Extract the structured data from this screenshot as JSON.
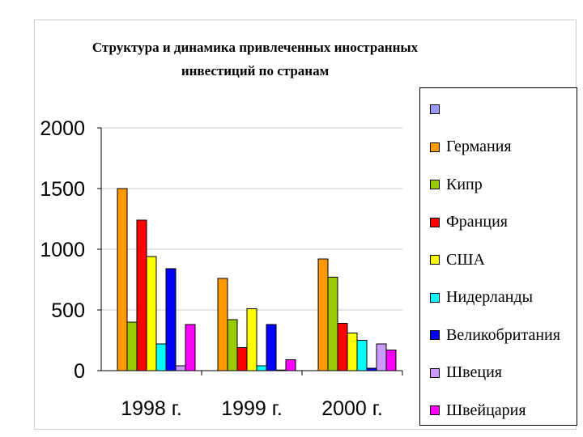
{
  "chart_data": {
    "type": "bar",
    "title": "Структура и динамика привлеченных иностранных инвестиций по странам",
    "categories": [
      "1998 г.",
      "1999 г.",
      "2000 г."
    ],
    "ylim": [
      0,
      2000
    ],
    "yticks": [
      0,
      500,
      1000,
      1500,
      2000
    ],
    "grid": true,
    "legend_position": "right",
    "series": [
      {
        "name": "",
        "color": "#9999ff",
        "values": [
          0,
          0,
          0
        ]
      },
      {
        "name": "Германия",
        "color": "#ff9900",
        "values": [
          1500,
          760,
          920
        ]
      },
      {
        "name": "Кипр",
        "color": "#99cc00",
        "values": [
          400,
          420,
          770
        ]
      },
      {
        "name": "Франция",
        "color": "#ff0000",
        "values": [
          1240,
          190,
          390
        ]
      },
      {
        "name": "США",
        "color": "#ffff00",
        "values": [
          940,
          510,
          310
        ]
      },
      {
        "name": "Нидерланды",
        "color": "#00ffff",
        "values": [
          220,
          40,
          250
        ]
      },
      {
        "name": "Великобритания",
        "color": "#0000ff",
        "values": [
          840,
          380,
          20
        ]
      },
      {
        "name": "Швеция",
        "color": "#cc99ff",
        "values": [
          40,
          5,
          220
        ]
      },
      {
        "name": "Швейцария",
        "color": "#ff00ff",
        "values": [
          380,
          90,
          170
        ]
      }
    ]
  }
}
